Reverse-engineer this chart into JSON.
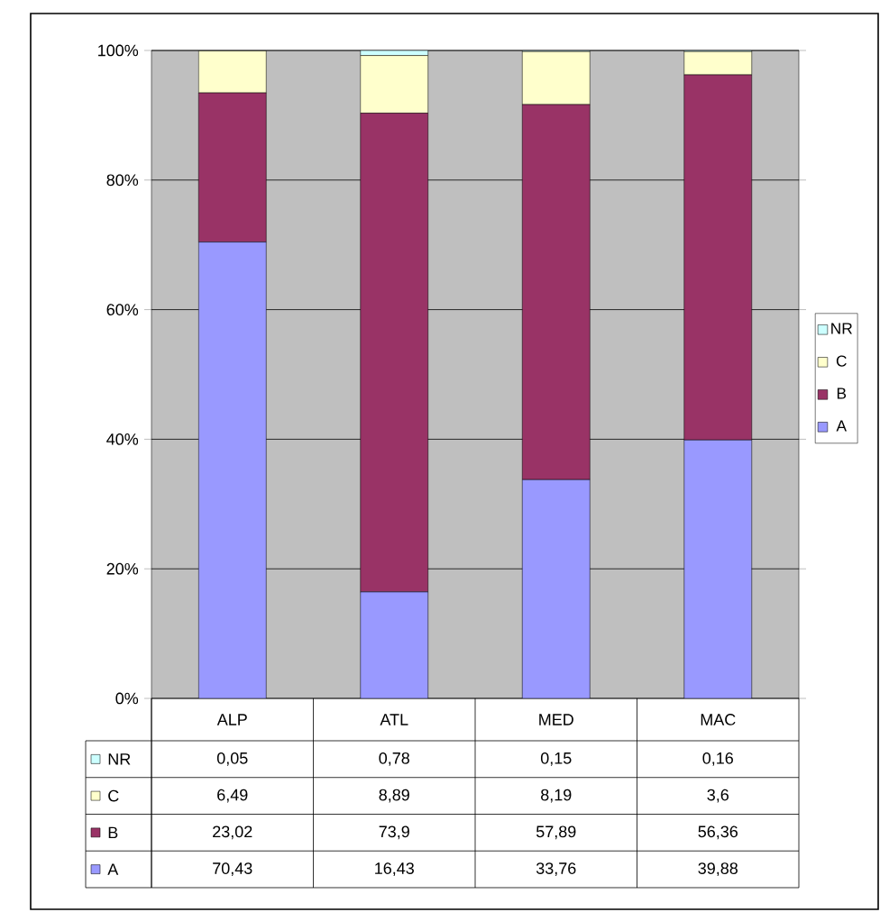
{
  "chart_data": {
    "type": "bar",
    "stacked": true,
    "categories": [
      "ALP",
      "ATL",
      "MED",
      "MAC"
    ],
    "series": [
      {
        "name": "A",
        "color": "#9999ff",
        "values": [
          70.43,
          16.43,
          33.76,
          39.88
        ],
        "value_labels": [
          "70,43",
          "16,43",
          "33,76",
          "39,88"
        ]
      },
      {
        "name": "B",
        "color": "#993366",
        "values": [
          23.02,
          73.9,
          57.89,
          56.36
        ],
        "value_labels": [
          "23,02",
          "73,9",
          "57,89",
          "56,36"
        ]
      },
      {
        "name": "C",
        "color": "#ffffcc",
        "values": [
          6.49,
          8.89,
          8.19,
          3.6
        ],
        "value_labels": [
          "6,49",
          "8,89",
          "8,19",
          "3,6"
        ]
      },
      {
        "name": "NR",
        "color": "#ccffff",
        "values": [
          0.05,
          0.78,
          0.15,
          0.16
        ],
        "value_labels": [
          "0,05",
          "0,78",
          "0,15",
          "0,16"
        ]
      }
    ],
    "ylim": [
      0,
      100
    ],
    "yticks": [
      {
        "value": 0,
        "label": "0%"
      },
      {
        "value": 20,
        "label": "20%"
      },
      {
        "value": 40,
        "label": "40%"
      },
      {
        "value": 60,
        "label": "60%"
      },
      {
        "value": 80,
        "label": "80%"
      },
      {
        "value": 100,
        "label": "100%"
      }
    ],
    "grid": "y",
    "legend": "right"
  }
}
